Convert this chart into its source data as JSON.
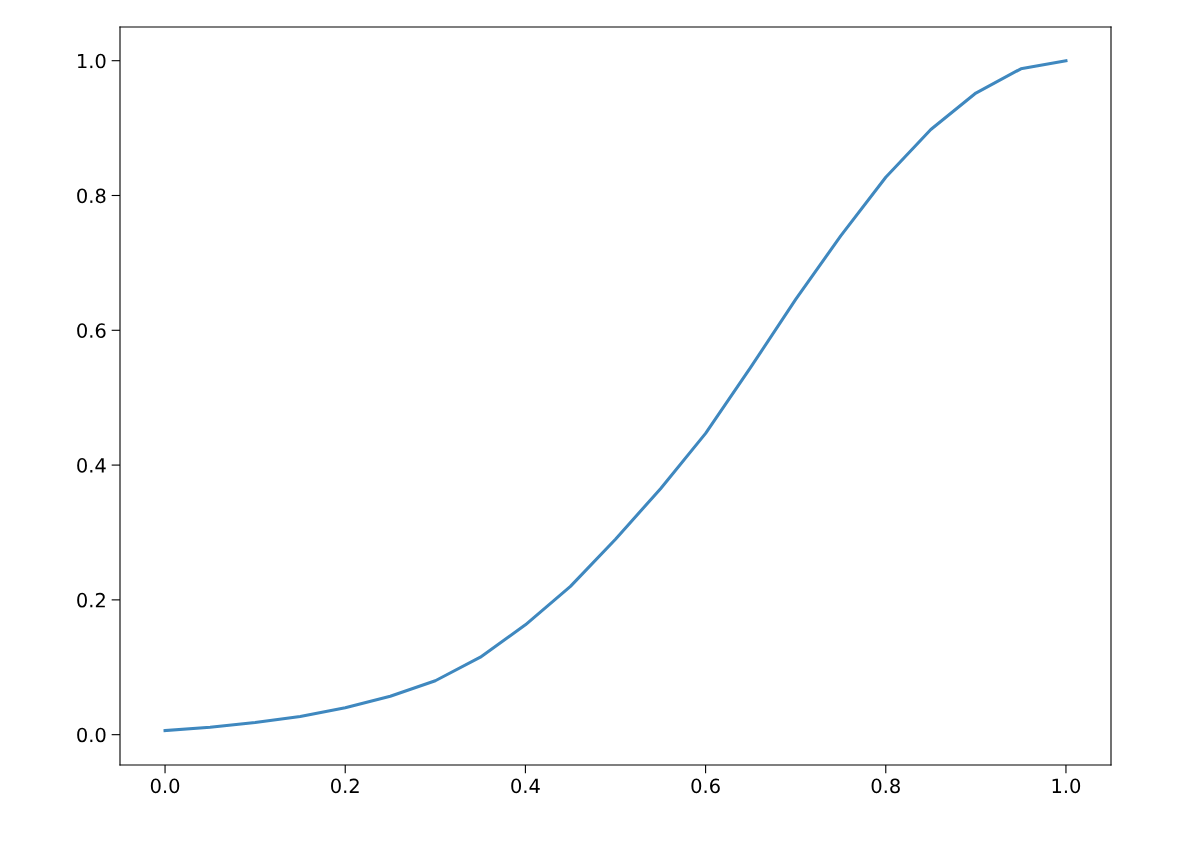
{
  "chart_data": {
    "type": "line",
    "x": [
      0.0,
      0.05,
      0.1,
      0.15,
      0.2,
      0.25,
      0.3,
      0.35,
      0.4,
      0.45,
      0.5,
      0.55,
      0.6,
      0.65,
      0.7,
      0.75,
      0.8,
      0.85,
      0.9,
      0.95,
      1.0
    ],
    "series": [
      {
        "color": "#3f88bf",
        "values": [
          0.006,
          0.011,
          0.018,
          0.027,
          0.04,
          0.057,
          0.08,
          0.115,
          0.163,
          0.22,
          0.29,
          0.365,
          0.447,
          0.545,
          0.646,
          0.74,
          0.827,
          0.898,
          0.952,
          0.988,
          1.0
        ]
      }
    ],
    "xlim": [
      -0.05,
      1.05
    ],
    "ylim": [
      -0.045,
      1.05
    ],
    "xticks": [
      {
        "value": 0,
        "label": "0.0"
      },
      0.2,
      0.4,
      0.6,
      0.8,
      {
        "value": 1,
        "label": "1.0"
      }
    ],
    "yticks": [
      {
        "value": 0,
        "label": "0.0"
      },
      0.2,
      0.4,
      0.6,
      0.8,
      {
        "value": 1,
        "label": "1.0"
      }
    ],
    "grid": false,
    "legend": false,
    "marker": "none",
    "line_style": "solid"
  }
}
